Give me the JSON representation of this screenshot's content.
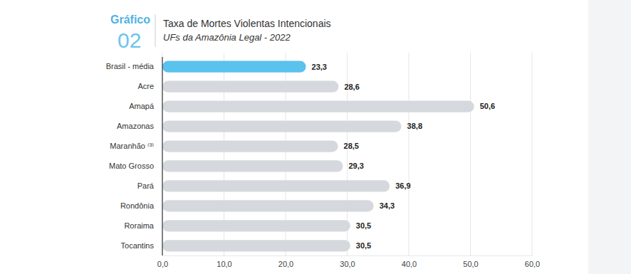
{
  "chart_data": {
    "type": "bar",
    "orientation": "horizontal",
    "annotations": [
      "Gráfico",
      "02"
    ],
    "title": "Taxa de Mortes Violentas Intencionais",
    "subtitle": "UFs da Amazônia Legal - 2022",
    "categories": [
      "Brasil - média",
      "Acre",
      "Amapá",
      "Amazonas",
      "Maranhão ⁽³⁾",
      "Mato Grosso",
      "Pará",
      "Rondônia",
      "Roraima",
      "Tocantins"
    ],
    "values": [
      23.3,
      28.6,
      50.6,
      38.8,
      28.5,
      29.3,
      36.9,
      34.3,
      30.5,
      30.5
    ],
    "value_labels": [
      "23,3",
      "28,6",
      "50,6",
      "38,8",
      "28,5",
      "29,3",
      "36,9",
      "34,3",
      "30,5",
      "30,5"
    ],
    "colors": [
      "#5bc2ee",
      "#d5d9de",
      "#d5d9de",
      "#d5d9de",
      "#d5d9de",
      "#d5d9de",
      "#d5d9de",
      "#d5d9de",
      "#d5d9de",
      "#d5d9de"
    ],
    "data_labels": true,
    "grid": true,
    "xlim": [
      0,
      60
    ],
    "xticks": [
      {
        "value": 0,
        "label": "0,0"
      },
      {
        "value": 10,
        "label": "10,0"
      },
      {
        "value": 20,
        "label": "20,0"
      },
      {
        "value": 30,
        "label": "30,0"
      },
      {
        "value": 40,
        "label": "40,0"
      },
      {
        "value": 50,
        "label": "50,0"
      },
      {
        "value": 60,
        "label": "60,0"
      }
    ]
  }
}
